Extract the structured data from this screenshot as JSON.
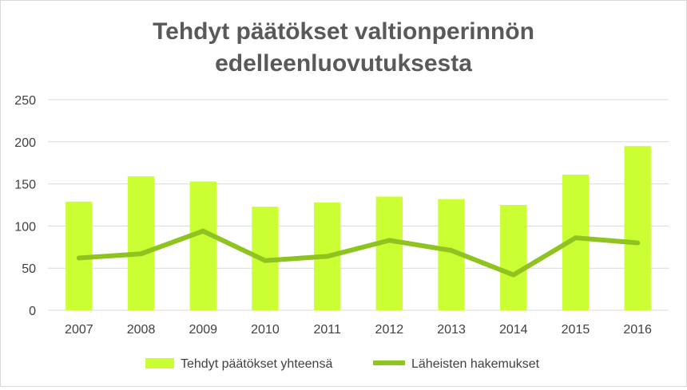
{
  "chart_data": {
    "type": "bar",
    "title_lines": [
      "Tehdyt päätökset valtionperinnön",
      "edelleenluovutuksesta"
    ],
    "categories": [
      "2007",
      "2008",
      "2009",
      "2010",
      "2011",
      "2012",
      "2013",
      "2014",
      "2015",
      "2016"
    ],
    "series": [
      {
        "name": "Tehdyt päätökset yhteensä",
        "type": "bar",
        "color": "#ccff33",
        "values": [
          129,
          159,
          153,
          123,
          128,
          135,
          132,
          125,
          161,
          195
        ]
      },
      {
        "name": "Läheisten hakemukset",
        "type": "line",
        "color": "#8fc31f",
        "values": [
          62,
          67,
          94,
          59,
          64,
          83,
          71,
          42,
          86,
          80
        ]
      }
    ],
    "yticks": [
      0,
      50,
      100,
      150,
      200,
      250
    ],
    "ylim": [
      0,
      250
    ],
    "grid": true,
    "legend_position": "bottom"
  }
}
